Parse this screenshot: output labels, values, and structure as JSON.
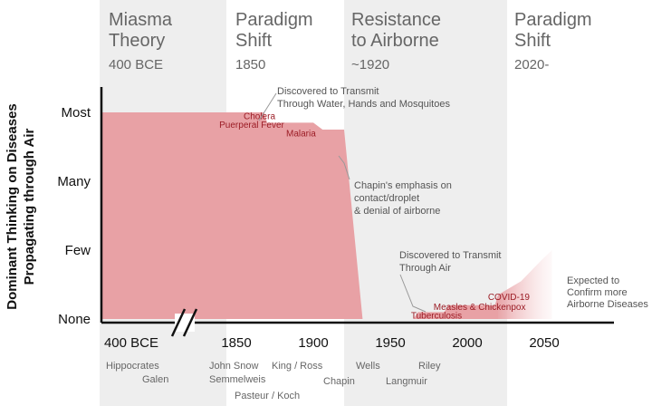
{
  "eras": [
    {
      "title_lines": [
        "Miasma",
        "Theory"
      ],
      "date": "400 BCE",
      "shaded": true
    },
    {
      "title_lines": [
        "Paradigm",
        "Shift"
      ],
      "date": "1850",
      "shaded": false
    },
    {
      "title_lines": [
        "Resistance",
        "to Airborne"
      ],
      "date": "~1920",
      "shaded": true
    },
    {
      "title_lines": [
        "Paradigm",
        "Shift"
      ],
      "date": "2020-",
      "shaded": false
    }
  ],
  "chart_data": {
    "type": "area",
    "title": "",
    "ylabel_lines": [
      "Dominant Thinking on Diseases",
      "Propagating through Air"
    ],
    "y_categories": [
      "None",
      "Few",
      "Many",
      "Most"
    ],
    "x_ticks": [
      "400 BCE",
      "1850",
      "1900",
      "1950",
      "2000",
      "2050"
    ],
    "axis_break_after": "400 BCE",
    "series": [
      {
        "values": [
          {
            "x": "400 BCE",
            "y": 3.0
          },
          {
            "x": 1850,
            "y": 3.0
          },
          {
            "x": 1868,
            "y": 3.0
          },
          {
            "x": 1870,
            "y": 2.85
          },
          {
            "x": 1900,
            "y": 2.85
          },
          {
            "x": 1906,
            "y": 2.75
          },
          {
            "x": 1920,
            "y": 2.75
          },
          {
            "x": 1932,
            "y": 0.0
          },
          {
            "x": 1965,
            "y": 0.0
          },
          {
            "x": 1968,
            "y": 0.1
          },
          {
            "x": 1985,
            "y": 0.1
          },
          {
            "x": 1988,
            "y": 0.2
          },
          {
            "x": 2018,
            "y": 0.2
          },
          {
            "x": 2020,
            "y": 0.35
          }
        ]
      }
    ],
    "projection": {
      "label": "Expected to Confirm more Airborne Diseases",
      "values": [
        {
          "x": 2020,
          "y": 0.35
        },
        {
          "x": 2035,
          "y": 0.55
        },
        {
          "x": 2048,
          "y": 0.85
        },
        {
          "x": 2055,
          "y": 1.0
        }
      ]
    },
    "disease_labels": [
      {
        "text": "Cholera",
        "x": 1865,
        "y": 2.95
      },
      {
        "text": "Puerperal Fever",
        "x": 1860,
        "y": 2.82
      },
      {
        "text": "Malaria",
        "x": 1892,
        "y": 2.7
      },
      {
        "text": "Tuberculosis",
        "x": 1980,
        "y": 0.05
      },
      {
        "text": "Measles & Chickenpox",
        "x": 2008,
        "y": 0.18
      },
      {
        "text": "COVID-19",
        "x": 2027,
        "y": 0.32
      }
    ],
    "annotations": [
      {
        "lines": [
          "Discovered to Transmit",
          "Through Water, Hands and Mosquitoes"
        ]
      },
      {
        "lines": [
          "Chapin's emphasis on",
          "contact/droplet",
          "& denial of airborne"
        ]
      },
      {
        "lines": [
          "Discovered to Transmit",
          "Through Air"
        ]
      },
      {
        "lines": [
          "Expected to",
          "Confirm more",
          "Airborne Diseases"
        ]
      }
    ],
    "people": [
      "Hippocrates",
      "Galen",
      "John Snow",
      "Semmelweis",
      "Pasteur / Koch",
      "King / Ross",
      "Chapin",
      "Wells",
      "Langmuir",
      "Riley"
    ],
    "colors": {
      "fill": "#e8a1a5",
      "fill_light": "#f6d6d8",
      "disease_text": "#9b1c25",
      "era_shade": "#eeeeee",
      "axis": "#111111",
      "annotation_line": "#999999"
    },
    "grid": false,
    "legend": "none"
  }
}
